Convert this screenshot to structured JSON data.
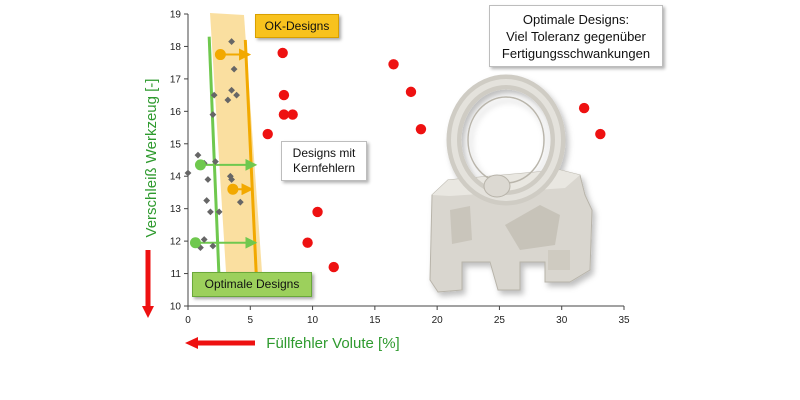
{
  "chart_data": {
    "type": "scatter",
    "title": "",
    "xlabel": "Füllfehler Volute [%]",
    "ylabel": "Verschleiß Werkzeug [-]",
    "xlim": [
      0,
      35
    ],
    "ylim": [
      10,
      19
    ],
    "x_ticks": [
      "0",
      "5",
      "10",
      "15",
      "20",
      "25",
      "30",
      "35"
    ],
    "y_ticks": [
      "10",
      "11",
      "12",
      "13",
      "14",
      "15",
      "16",
      "17",
      "18",
      "19"
    ],
    "grid": false,
    "series": [
      {
        "marker": "circle",
        "color": "#ee1111",
        "points": [
          {
            "x": 7.6,
            "y": 17.8
          },
          {
            "x": 7.7,
            "y": 16.5
          },
          {
            "x": 7.7,
            "y": 15.9
          },
          {
            "x": 8.4,
            "y": 15.9
          },
          {
            "x": 6.4,
            "y": 15.3
          },
          {
            "x": 10.4,
            "y": 12.9
          },
          {
            "x": 9.6,
            "y": 11.95
          },
          {
            "x": 11.7,
            "y": 11.2
          },
          {
            "x": 16.5,
            "y": 17.45
          },
          {
            "x": 17.9,
            "y": 16.6
          },
          {
            "x": 18.7,
            "y": 15.45
          },
          {
            "x": 31.8,
            "y": 16.1
          },
          {
            "x": 33.1,
            "y": 15.3
          }
        ]
      },
      {
        "marker": "diamond",
        "color": "#666666",
        "points": [
          {
            "x": 0.0,
            "y": 14.1
          },
          {
            "x": 0.8,
            "y": 14.65
          },
          {
            "x": 1.3,
            "y": 14.4
          },
          {
            "x": 1.6,
            "y": 13.9
          },
          {
            "x": 1.5,
            "y": 13.25
          },
          {
            "x": 1.8,
            "y": 12.9
          },
          {
            "x": 1.3,
            "y": 12.05
          },
          {
            "x": 2.0,
            "y": 11.85
          },
          {
            "x": 1.0,
            "y": 11.8
          },
          {
            "x": 2.2,
            "y": 14.45
          },
          {
            "x": 2.0,
            "y": 15.9
          },
          {
            "x": 2.1,
            "y": 16.5
          },
          {
            "x": 3.2,
            "y": 16.35
          },
          {
            "x": 3.5,
            "y": 16.65
          },
          {
            "x": 3.9,
            "y": 16.5
          },
          {
            "x": 3.7,
            "y": 17.3
          },
          {
            "x": 3.5,
            "y": 18.15
          },
          {
            "x": 3.4,
            "y": 14.0
          },
          {
            "x": 3.5,
            "y": 13.9
          },
          {
            "x": 4.2,
            "y": 13.2
          },
          {
            "x": 2.5,
            "y": 12.9
          }
        ]
      },
      {
        "marker": "circle",
        "color": "#f2a900",
        "points": [
          {
            "x": 2.6,
            "y": 17.75
          },
          {
            "x": 3.6,
            "y": 13.6
          }
        ]
      },
      {
        "marker": "circle",
        "color": "#6fc84e",
        "points": [
          {
            "x": 1.0,
            "y": 14.35
          },
          {
            "x": 0.6,
            "y": 11.95
          }
        ]
      }
    ],
    "annotations": {
      "ok_designs": "OK-Designs",
      "optimale_designs": "Optimale Designs",
      "kernfehler": "Designs mit\nKernfehlern",
      "toleranz": "Optimale Designs:\nViel Toleranz gegenüber\nFertigungsschwankungen"
    },
    "bands": {
      "ok_band_color": "#fadc96",
      "green_line_color": "#6fc84e",
      "yellow_line_color": "#f2a900",
      "arrow_color": "#ee1111"
    }
  }
}
